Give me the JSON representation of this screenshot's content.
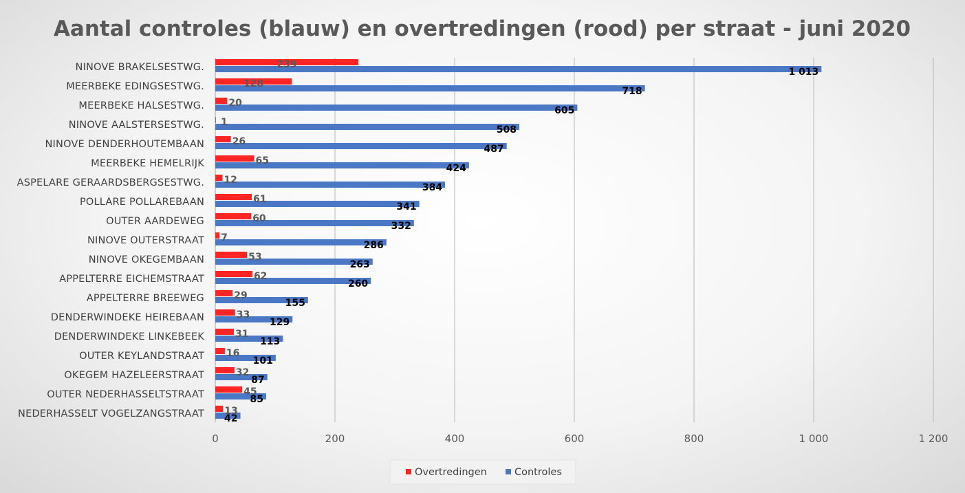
{
  "chart_data": {
    "type": "bar",
    "orientation": "horizontal",
    "title": "Aantal controles (blauw) en overtredingen (rood) per straat - juni 2020",
    "categories": [
      "NINOVE BRAKELSESTWG.",
      "MEERBEKE EDINGSESTWG.",
      "MEERBEKE HALSESTWG.",
      "NINOVE AALSTERSESTWG.",
      "NINOVE DENDERHOUTEMBAAN",
      "MEERBEKE HEMELRIJK",
      "ASPELARE GERAARDSBERGSESTWG.",
      "POLLARE POLLAREBAAN",
      "OUTER AARDEWEG",
      "NINOVE OUTERSTRAAT",
      "NINOVE OKEGEMBAAN",
      "APPELTERRE EICHEMSTRAAT",
      "APPELTERRE BREEWEG",
      "DENDERWINDEKE HEIREBAAN",
      "DENDERWINDEKE LINKEBEEK",
      "OUTER KEYLANDSTRAAT",
      "OKEGEM HAZELEERSTRAAT",
      "OUTER NEDERHASSELTSTRAAT",
      "NEDERHASSELT VOGELZANGSTRAAT"
    ],
    "series": [
      {
        "name": "Overtredingen",
        "color": "#ff2525",
        "values": [
          239,
          128,
          20,
          1,
          26,
          65,
          12,
          61,
          60,
          7,
          53,
          62,
          29,
          33,
          31,
          16,
          32,
          45,
          13
        ],
        "labels": [
          "239",
          "128",
          "20",
          "1",
          "26",
          "65",
          "12",
          "61",
          "60",
          "7",
          "53",
          "62",
          "29",
          "33",
          "31",
          "16",
          "32",
          "45",
          "13"
        ]
      },
      {
        "name": "Controles",
        "color": "#4a78c5",
        "values": [
          1013,
          718,
          605,
          508,
          487,
          424,
          384,
          341,
          332,
          286,
          263,
          260,
          155,
          129,
          113,
          101,
          87,
          85,
          42
        ],
        "labels": [
          "1 013",
          "718",
          "605",
          "508",
          "487",
          "424",
          "384",
          "341",
          "332",
          "286",
          "263",
          "260",
          "155",
          "129",
          "113",
          "101",
          "87",
          "85",
          "42"
        ]
      }
    ],
    "x_ticks": [
      0,
      200,
      400,
      600,
      800,
      1000,
      1200
    ],
    "x_tick_labels": [
      "0",
      "200",
      "400",
      "600",
      "800",
      "1 000",
      "1 200"
    ],
    "xlim": [
      0,
      1200
    ],
    "xlabel": "",
    "ylabel": "",
    "grid": "vertical",
    "legend": {
      "position": "bottom",
      "items": [
        "Overtredingen",
        "Controles"
      ]
    }
  }
}
